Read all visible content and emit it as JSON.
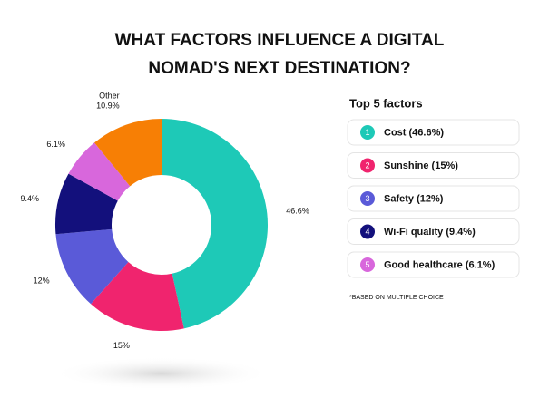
{
  "chart_data": {
    "type": "donut",
    "title_lines": [
      "WHAT FACTORS INFLUENCE A DIGITAL",
      "NOMAD'S NEXT DESTINATION?"
    ],
    "categories": [
      "Cost (46.6%)",
      "Sunshine (15%)",
      "Safety (12%)",
      "Wi-Fi quality (9.4%)",
      "Good healthcare (6.1%)",
      "Other"
    ],
    "values": [
      46.6,
      15,
      12,
      9.4,
      6.1,
      10.9
    ],
    "value_labels": [
      "46.6%",
      "15%",
      "12%",
      "9.4%",
      "6.1%",
      "10.9%"
    ],
    "colors": [
      "#1ec9b7",
      "#f0246e",
      "#5a5ad8",
      "#13107c",
      "#d867dc",
      "#f77f05"
    ],
    "legend_title": "Top 5 factors",
    "legend_numbers": [
      "1",
      "2",
      "3",
      "4",
      "5"
    ],
    "footnote": "*BASED ON MULTIPLE CHOICE"
  }
}
